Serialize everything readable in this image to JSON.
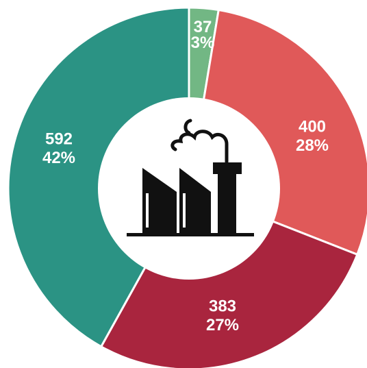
{
  "chart_data": {
    "type": "donut",
    "categories": [
      null,
      null,
      null,
      null
    ],
    "values": [
      37,
      400,
      383,
      592
    ],
    "percent_labels": [
      "3%",
      "28%",
      "27%",
      "42%"
    ],
    "colors": [
      "#72b784",
      "#e05959",
      "#a9253e",
      "#2b9384"
    ]
  }
}
